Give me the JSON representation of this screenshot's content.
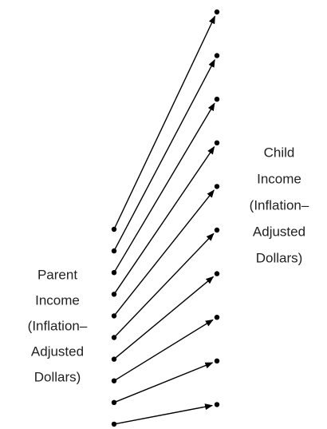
{
  "parent_label": {
    "lines": [
      "Parent",
      "Income",
      "(Inflation–",
      "Adjusted",
      "Dollars)"
    ]
  },
  "child_label": {
    "lines": [
      "Child",
      "Income",
      "(Inflation–",
      "Adjusted",
      "Dollars)"
    ]
  }
}
